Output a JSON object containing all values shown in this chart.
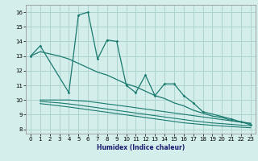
{
  "xlabel": "Humidex (Indice chaleur)",
  "ylabel": "",
  "bg_color": "#d4eeec",
  "grid_color": "#aed4d0",
  "line_color": "#1a7a6e",
  "xlim": [
    -0.5,
    23.5
  ],
  "ylim": [
    7.7,
    16.5
  ],
  "xticks": [
    0,
    1,
    2,
    3,
    4,
    5,
    6,
    7,
    8,
    9,
    10,
    11,
    12,
    13,
    14,
    15,
    16,
    17,
    18,
    19,
    20,
    21,
    22,
    23
  ],
  "yticks": [
    8,
    9,
    10,
    11,
    12,
    13,
    14,
    15,
    16
  ],
  "series1_x": [
    0,
    1,
    4,
    5,
    6,
    7,
    8,
    9,
    10,
    11,
    12,
    13,
    14,
    15,
    16,
    17,
    18,
    21,
    22,
    23
  ],
  "series1_y": [
    13.0,
    13.7,
    10.5,
    15.8,
    16.0,
    12.8,
    14.1,
    14.0,
    11.0,
    10.5,
    11.7,
    10.3,
    11.1,
    11.1,
    10.3,
    9.8,
    9.2,
    8.7,
    8.5,
    8.3
  ],
  "series2_x": [
    0,
    1,
    3,
    4,
    5,
    6,
    7,
    8,
    9,
    10,
    11,
    12,
    13,
    14,
    15,
    16,
    17,
    18,
    19,
    20,
    21,
    22,
    23
  ],
  "series2_y": [
    13.0,
    13.3,
    13.0,
    12.8,
    12.5,
    12.2,
    11.9,
    11.7,
    11.4,
    11.1,
    10.9,
    10.6,
    10.3,
    10.1,
    9.8,
    9.6,
    9.3,
    9.1,
    8.9,
    8.8,
    8.6,
    8.5,
    8.4
  ],
  "series3_x": [
    1,
    2,
    3,
    4,
    5,
    6,
    7,
    8,
    9,
    10,
    11,
    12,
    13,
    14,
    15,
    16,
    17,
    18,
    19,
    20,
    21,
    22,
    23
  ],
  "series3_y": [
    10.0,
    10.0,
    10.0,
    10.0,
    9.95,
    9.9,
    9.82,
    9.73,
    9.65,
    9.56,
    9.47,
    9.38,
    9.29,
    9.2,
    9.11,
    9.02,
    8.93,
    8.84,
    8.75,
    8.66,
    8.57,
    8.48,
    8.4
  ],
  "series4_x": [
    1,
    2,
    3,
    4,
    5,
    6,
    7,
    8,
    9,
    10,
    11,
    12,
    13,
    14,
    15,
    16,
    17,
    18,
    19,
    20,
    21,
    22,
    23
  ],
  "series4_y": [
    9.9,
    9.85,
    9.8,
    9.73,
    9.65,
    9.56,
    9.47,
    9.38,
    9.29,
    9.2,
    9.11,
    9.02,
    8.93,
    8.84,
    8.75,
    8.66,
    8.57,
    8.5,
    8.43,
    8.38,
    8.33,
    8.28,
    8.23
  ],
  "series5_x": [
    1,
    2,
    3,
    4,
    5,
    6,
    7,
    8,
    9,
    10,
    11,
    12,
    13,
    14,
    15,
    16,
    17,
    18,
    19,
    20,
    21,
    22,
    23
  ],
  "series5_y": [
    9.75,
    9.68,
    9.6,
    9.52,
    9.43,
    9.34,
    9.25,
    9.16,
    9.07,
    8.98,
    8.89,
    8.8,
    8.71,
    8.62,
    8.53,
    8.44,
    8.38,
    8.32,
    8.27,
    8.22,
    8.18,
    8.14,
    8.1
  ]
}
